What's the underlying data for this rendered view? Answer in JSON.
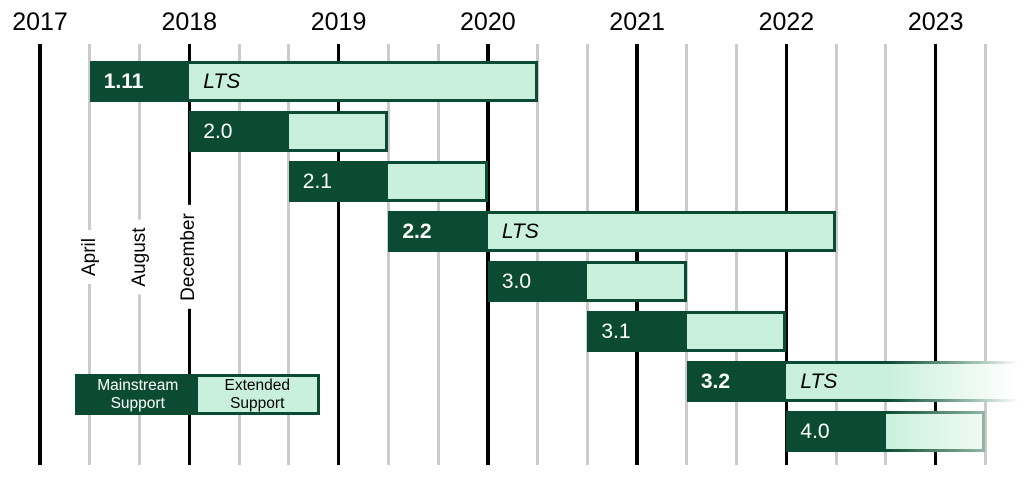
{
  "legend": {
    "mainstream_label": "Mainstream Support",
    "extended_label": "Extended Support"
  },
  "chart_data": {
    "type": "gantt",
    "lts_label": "LTS",
    "x_axis": {
      "year_labels": [
        "2017",
        "2018",
        "2019",
        "2020",
        "2021",
        "2022",
        "2023"
      ],
      "month_gridline_labels": [
        "April",
        "August",
        "December"
      ],
      "gridline_interval_months": 4,
      "start": "2016-12",
      "end": "2023-07"
    },
    "bars": [
      {
        "version": "1.11",
        "lts": true,
        "release": "2017-04",
        "mainstream_until": "2017-12",
        "extended_until": "2020-04",
        "fade": "none"
      },
      {
        "version": "2.0",
        "lts": false,
        "release": "2017-12",
        "mainstream_until": "2018-08",
        "extended_until": "2019-04",
        "fade": "none"
      },
      {
        "version": "2.1",
        "lts": false,
        "release": "2018-08",
        "mainstream_until": "2019-04",
        "extended_until": "2019-12",
        "fade": "none"
      },
      {
        "version": "2.2",
        "lts": true,
        "release": "2019-04",
        "mainstream_until": "2019-12",
        "extended_until": "2022-04",
        "fade": "none"
      },
      {
        "version": "3.0",
        "lts": false,
        "release": "2019-12",
        "mainstream_until": "2020-08",
        "extended_until": "2021-04",
        "fade": "none"
      },
      {
        "version": "3.1",
        "lts": false,
        "release": "2020-08",
        "mainstream_until": "2021-04",
        "extended_until": "2021-12",
        "fade": "none"
      },
      {
        "version": "3.2",
        "lts": true,
        "release": "2021-04",
        "mainstream_until": "2021-12",
        "extended_until": null,
        "fade": "overflow"
      },
      {
        "version": "4.0",
        "lts": false,
        "release": "2021-12",
        "mainstream_until": "2022-08",
        "extended_until": "2023-04",
        "fade": "partial"
      }
    ],
    "legend_position": "bottom-left",
    "colors": {
      "mainstream": "#0C4B33",
      "extended": "#C9F0DD",
      "year_line": "#000000",
      "month_line": "#CBCBCB",
      "text": "#000000",
      "bar_text": "#FFFFFF"
    }
  }
}
